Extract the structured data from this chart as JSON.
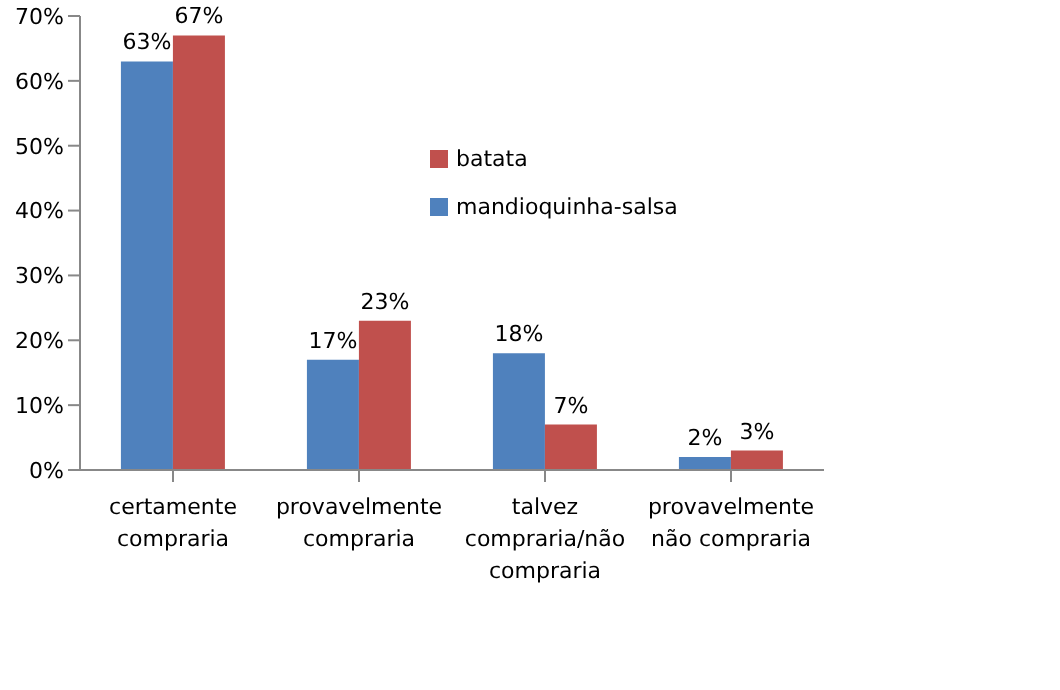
{
  "chart_data": {
    "type": "bar",
    "categories": [
      "certamente compraria",
      "provavelmente compraria",
      "talvez compraria/não compraria",
      "provavelmente não compraria"
    ],
    "series": [
      {
        "name": "mandioquinha-salsa",
        "color": "#4f81bd",
        "values": [
          63,
          17,
          18,
          2
        ],
        "value_labels": [
          "63%",
          "17%",
          "18%",
          "2%"
        ]
      },
      {
        "name": "batata",
        "color": "#c0504d",
        "values": [
          67,
          23,
          7,
          3
        ],
        "value_labels": [
          "67%",
          "23%",
          "7%",
          "3%"
        ]
      }
    ],
    "ylim": [
      0,
      70
    ],
    "yticks": [
      {
        "value": 0,
        "label": "0%"
      },
      {
        "value": 10,
        "label": "10%"
      },
      {
        "value": 20,
        "label": "20%"
      },
      {
        "value": 30,
        "label": "30%"
      },
      {
        "value": 40,
        "label": "40%"
      },
      {
        "value": 50,
        "label": "50%"
      },
      {
        "value": 60,
        "label": "60%"
      },
      {
        "value": 70,
        "label": "70%"
      }
    ],
    "grid": false,
    "legend": "top"
  }
}
